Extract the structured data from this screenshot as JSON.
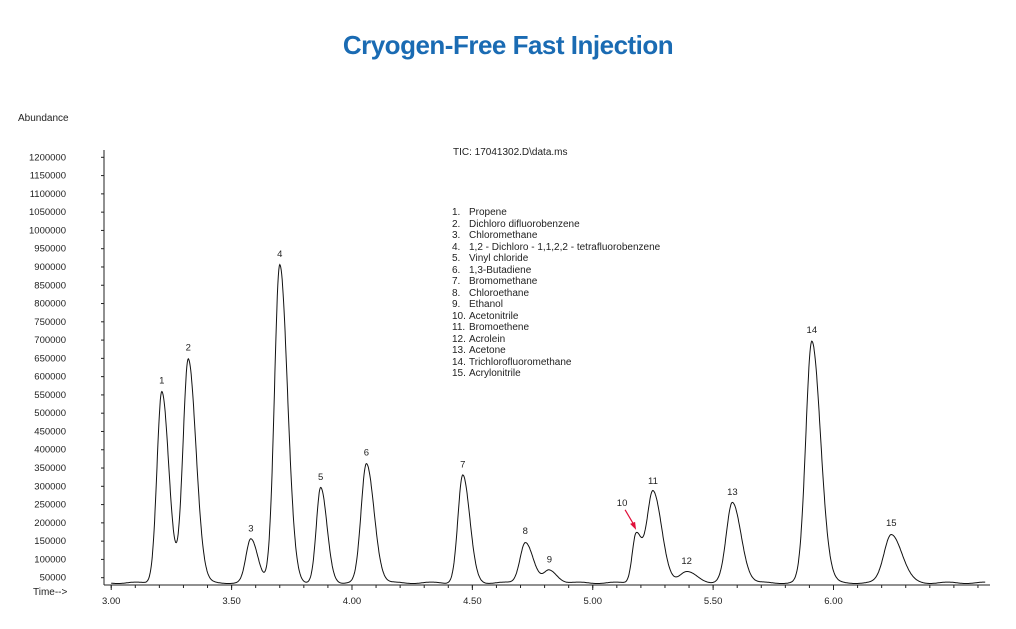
{
  "chart_data": {
    "type": "line",
    "title": "Cryogen-Free Fast Injection",
    "subtitle": "TIC: 17041302.D\\data.ms",
    "xlabel": "Time-->",
    "ylabel": "Abundance",
    "xlim": [
      2.97,
      6.65
    ],
    "ylim": [
      30000,
      1220000
    ],
    "baseline": 36000,
    "x_ticks": [
      3.0,
      3.5,
      4.0,
      4.5,
      5.0,
      5.5,
      6.0
    ],
    "x_tick_labels": [
      "3.00",
      "3.50",
      "4.00",
      "4.50",
      "5.00",
      "5.50",
      "6.00"
    ],
    "y_ticks": [
      50000,
      100000,
      150000,
      200000,
      250000,
      300000,
      350000,
      400000,
      450000,
      500000,
      550000,
      600000,
      650000,
      700000,
      750000,
      800000,
      850000,
      900000,
      950000,
      1000000,
      1050000,
      1100000,
      1150000,
      1200000
    ],
    "y_tick_labels": [
      "50000",
      "100000",
      "150000",
      "200000",
      "250000",
      "300000",
      "350000",
      "400000",
      "450000",
      "500000",
      "550000",
      "600000",
      "650000",
      "700000",
      "750000",
      "800000",
      "850000",
      "900000",
      "950000",
      "1000000",
      "1050000",
      "1100000",
      "1150000",
      "1200000"
    ],
    "peaks": [
      {
        "label": "1",
        "name": "Propene",
        "rt": 3.21,
        "height": 560000,
        "width": 0.02
      },
      {
        "label": "2",
        "name": "Dichloro difluorobenzene",
        "rt": 3.32,
        "height": 650000,
        "width": 0.022
      },
      {
        "label": "3",
        "name": "Chloromethane",
        "rt": 3.58,
        "height": 155000,
        "width": 0.02
      },
      {
        "label": "4",
        "name": "1,2 - Dichloro - 1,1,2,2 - tetrafluorobenzene",
        "rt": 3.7,
        "height": 905000,
        "width": 0.022
      },
      {
        "label": "5",
        "name": "Vinyl chloride",
        "rt": 3.87,
        "height": 295000,
        "width": 0.018
      },
      {
        "label": "6",
        "name": "1,3-Butadiene",
        "rt": 4.06,
        "height": 362000,
        "width": 0.022
      },
      {
        "label": "7",
        "name": "Bromomethane",
        "rt": 4.46,
        "height": 330000,
        "width": 0.02
      },
      {
        "label": "8",
        "name": "Chloroethane",
        "rt": 4.72,
        "height": 148000,
        "width": 0.022
      },
      {
        "label": "9",
        "name": "Ethanol",
        "rt": 4.82,
        "height": 70000,
        "width": 0.022
      },
      {
        "label": "10",
        "name": "Acetonitrile",
        "rt": 5.18,
        "height": 170000,
        "width": 0.016
      },
      {
        "label": "11",
        "name": "Bromoethene",
        "rt": 5.25,
        "height": 285000,
        "width": 0.025
      },
      {
        "label": "12",
        "name": "Acrolein",
        "rt": 5.39,
        "height": 65000,
        "width": 0.03
      },
      {
        "label": "13",
        "name": "Acetone",
        "rt": 5.58,
        "height": 255000,
        "width": 0.025
      },
      {
        "label": "14",
        "name": "Trichlorofluoromethane",
        "rt": 5.91,
        "height": 698000,
        "width": 0.025
      },
      {
        "label": "15",
        "name": "Acrylonitrile",
        "rt": 6.24,
        "height": 170000,
        "width": 0.03
      }
    ],
    "legend": [
      {
        "num": "1.",
        "name": "Propene"
      },
      {
        "num": "2.",
        "name": "Dichloro difluorobenzene"
      },
      {
        "num": "3.",
        "name": "Chloromethane"
      },
      {
        "num": "4.",
        "name": "1,2 - Dichloro - 1,1,2,2 - tetrafluorobenzene"
      },
      {
        "num": "5.",
        "name": "Vinyl chloride"
      },
      {
        "num": "6.",
        "name": "1,3-Butadiene"
      },
      {
        "num": "7.",
        "name": "Bromomethane"
      },
      {
        "num": "8.",
        "name": "Chloroethane"
      },
      {
        "num": "9.",
        "name": "Ethanol"
      },
      {
        "num": "10.",
        "name": "Acetonitrile"
      },
      {
        "num": "11.",
        "name": "Bromoethene"
      },
      {
        "num": "12.",
        "name": "Acrolein"
      },
      {
        "num": "13.",
        "name": "Acetone"
      },
      {
        "num": "14.",
        "name": "Trichlorofluoromethane"
      },
      {
        "num": "15.",
        "name": "Acrylonitrile"
      }
    ],
    "colors": {
      "title": "#1a6bb3",
      "trace": "#111111",
      "arrow": "#e0103a"
    }
  }
}
